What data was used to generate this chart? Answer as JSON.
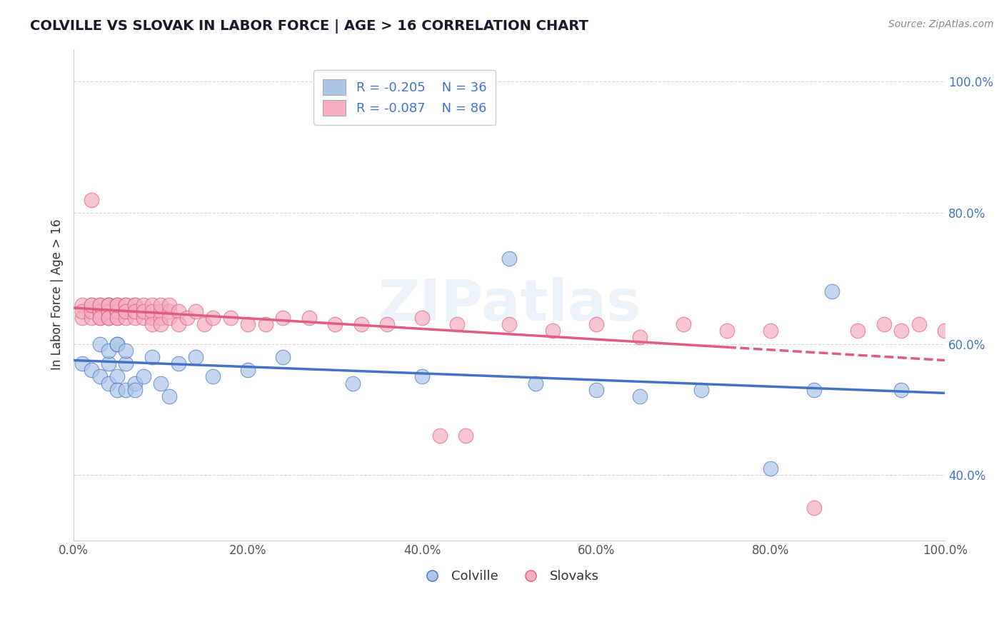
{
  "title": "COLVILLE VS SLOVAK IN LABOR FORCE | AGE > 16 CORRELATION CHART",
  "source_text": "Source: ZipAtlas.com",
  "ylabel": "In Labor Force | Age > 16",
  "xlim": [
    0.0,
    1.0
  ],
  "ylim": [
    0.3,
    1.05
  ],
  "x_ticks": [
    0.0,
    0.2,
    0.4,
    0.6,
    0.8,
    1.0
  ],
  "x_tick_labels": [
    "0.0%",
    "20.0%",
    "40.0%",
    "60.0%",
    "80.0%",
    "100.0%"
  ],
  "y_ticks": [
    0.4,
    0.6,
    0.8,
    1.0
  ],
  "y_tick_labels": [
    "40.0%",
    "60.0%",
    "80.0%",
    "100.0%"
  ],
  "colville_color": "#adc6e8",
  "slovak_color": "#f4aec0",
  "colville_line_color": "#4472c4",
  "slovak_line_color": "#e05c80",
  "watermark": "ZIPatlas",
  "legend_R_colville": "R = -0.205",
  "legend_N_colville": "N = 36",
  "legend_R_slovak": "R = -0.087",
  "legend_N_slovak": "N = 86",
  "colville_trend": [
    0.575,
    0.525
  ],
  "slovak_trend_solid": [
    0.655,
    0.6
  ],
  "slovak_trend_dashed": [
    0.6,
    0.575
  ],
  "colville_x": [
    0.01,
    0.02,
    0.03,
    0.03,
    0.04,
    0.04,
    0.04,
    0.05,
    0.05,
    0.05,
    0.05,
    0.06,
    0.06,
    0.06,
    0.07,
    0.07,
    0.08,
    0.09,
    0.1,
    0.11,
    0.12,
    0.14,
    0.16,
    0.2,
    0.24,
    0.32,
    0.4,
    0.5,
    0.53,
    0.6,
    0.65,
    0.72,
    0.8,
    0.85,
    0.87,
    0.95
  ],
  "colville_y": [
    0.57,
    0.56,
    0.6,
    0.55,
    0.57,
    0.54,
    0.59,
    0.6,
    0.55,
    0.53,
    0.6,
    0.53,
    0.57,
    0.59,
    0.54,
    0.53,
    0.55,
    0.58,
    0.54,
    0.52,
    0.57,
    0.58,
    0.55,
    0.56,
    0.58,
    0.54,
    0.55,
    0.73,
    0.54,
    0.53,
    0.52,
    0.53,
    0.41,
    0.53,
    0.68,
    0.53
  ],
  "slovak_x": [
    0.01,
    0.01,
    0.01,
    0.02,
    0.02,
    0.02,
    0.02,
    0.02,
    0.03,
    0.03,
    0.03,
    0.03,
    0.03,
    0.03,
    0.04,
    0.04,
    0.04,
    0.04,
    0.04,
    0.04,
    0.04,
    0.05,
    0.05,
    0.05,
    0.05,
    0.05,
    0.05,
    0.05,
    0.05,
    0.06,
    0.06,
    0.06,
    0.06,
    0.06,
    0.06,
    0.07,
    0.07,
    0.07,
    0.07,
    0.07,
    0.08,
    0.08,
    0.08,
    0.08,
    0.09,
    0.09,
    0.09,
    0.09,
    0.1,
    0.1,
    0.1,
    0.1,
    0.11,
    0.11,
    0.11,
    0.12,
    0.12,
    0.13,
    0.14,
    0.15,
    0.16,
    0.18,
    0.2,
    0.22,
    0.24,
    0.27,
    0.3,
    0.33,
    0.36,
    0.4,
    0.44,
    0.5,
    0.55,
    0.6,
    0.65,
    0.7,
    0.75,
    0.8,
    0.85,
    0.9,
    0.93,
    0.95,
    0.97,
    1.0,
    0.42,
    0.45
  ],
  "slovak_y": [
    0.64,
    0.66,
    0.65,
    0.64,
    0.65,
    0.66,
    0.82,
    0.66,
    0.65,
    0.64,
    0.66,
    0.65,
    0.66,
    0.64,
    0.66,
    0.65,
    0.64,
    0.66,
    0.65,
    0.66,
    0.64,
    0.65,
    0.66,
    0.64,
    0.65,
    0.66,
    0.65,
    0.64,
    0.66,
    0.65,
    0.66,
    0.65,
    0.64,
    0.66,
    0.65,
    0.66,
    0.65,
    0.64,
    0.66,
    0.65,
    0.65,
    0.66,
    0.64,
    0.65,
    0.66,
    0.64,
    0.65,
    0.63,
    0.64,
    0.65,
    0.63,
    0.66,
    0.65,
    0.64,
    0.66,
    0.65,
    0.63,
    0.64,
    0.65,
    0.63,
    0.64,
    0.64,
    0.63,
    0.63,
    0.64,
    0.64,
    0.63,
    0.63,
    0.63,
    0.64,
    0.63,
    0.63,
    0.62,
    0.63,
    0.61,
    0.63,
    0.62,
    0.62,
    0.35,
    0.62,
    0.63,
    0.62,
    0.63,
    0.62,
    0.46,
    0.46
  ]
}
